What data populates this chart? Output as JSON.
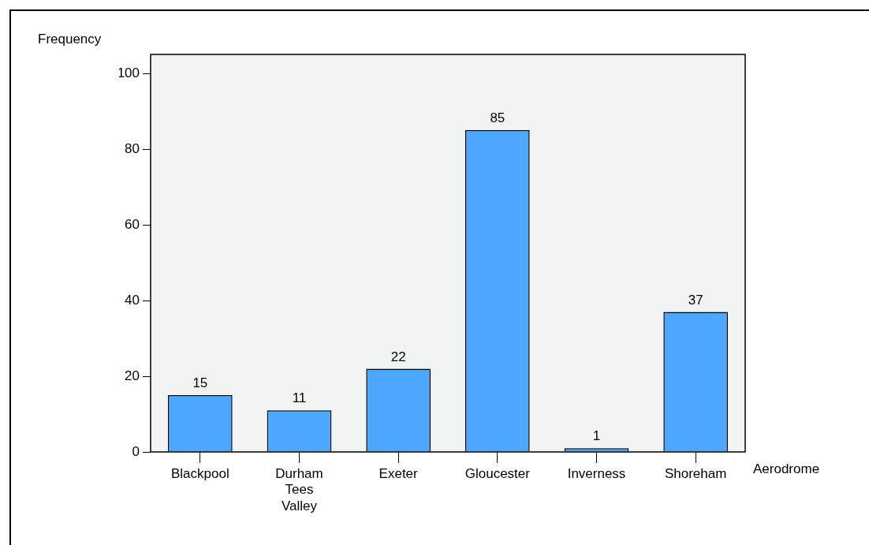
{
  "chart_data": {
    "type": "bar",
    "xlabel": "Aerodrome",
    "ylabel": "Frequency",
    "categories": [
      "Blackpool",
      "Durham Tees Valley",
      "Exeter",
      "Gloucester",
      "Inverness",
      "Shoreham"
    ],
    "values": [
      15,
      11,
      22,
      85,
      1,
      37
    ],
    "color": "#4da6ff",
    "ylim": [
      0,
      105
    ],
    "yticks": [
      0,
      20,
      40,
      60,
      80,
      100
    ],
    "grid": false,
    "legend": false,
    "data_labels": true
  }
}
